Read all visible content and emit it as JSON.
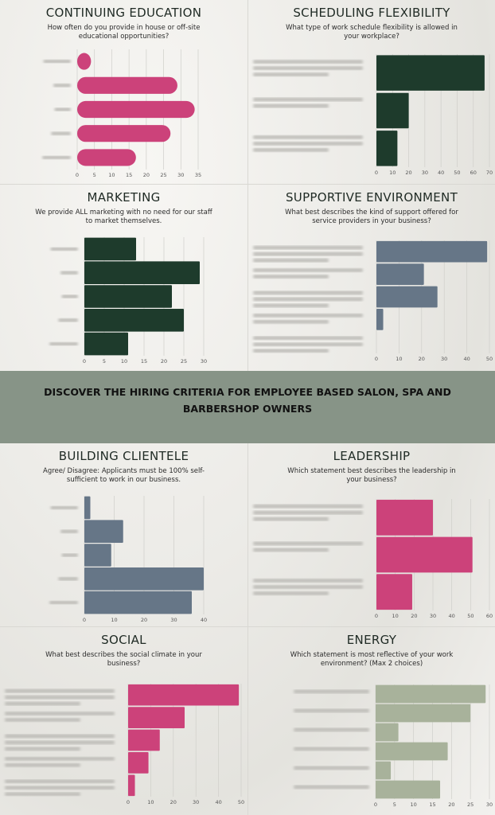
{
  "banner": {
    "text": "DISCOVER THE HIRING CRITERIA FOR EMPLOYEE BASED SALON, SPA AND BARBERSHOP OWNERS",
    "color": "#879487"
  },
  "chart_data": [
    {
      "id": "continuing-education",
      "type": "bar",
      "orientation": "horizontal",
      "title": "CONTINUING EDUCATION",
      "subtitle": "How often do you provide in house or off-site educational opportunities?",
      "values": [
        4,
        29,
        34,
        27,
        17
      ],
      "xlim": [
        0,
        35
      ],
      "ticks": [
        0,
        5,
        10,
        15,
        20,
        25,
        30,
        35
      ],
      "color": "#cc427a",
      "grid": true,
      "category_labels": "blurred",
      "bar_style": "rounded"
    },
    {
      "id": "scheduling-flexibility",
      "type": "bar",
      "orientation": "horizontal",
      "title": "SCHEDULING FLEXIBILITY",
      "subtitle": "What type of work schedule flexibility is allowed in your workplace?",
      "values": [
        67,
        20,
        13
      ],
      "xlim": [
        0,
        70
      ],
      "ticks": [
        0,
        10,
        20,
        30,
        40,
        50,
        60,
        70
      ],
      "color": "#1e3b2c",
      "grid": true,
      "category_labels": "blurred"
    },
    {
      "id": "marketing",
      "type": "bar",
      "orientation": "horizontal",
      "title": "MARKETING",
      "subtitle": "We provide ALL marketing with no need for our staff to market themselves.",
      "values": [
        13,
        29,
        22,
        25,
        11
      ],
      "xlim": [
        0,
        30
      ],
      "ticks": [
        0,
        5,
        10,
        15,
        20,
        25,
        30
      ],
      "color": "#1e3b2c",
      "grid": true,
      "category_labels": "blurred"
    },
    {
      "id": "supportive-environment",
      "type": "bar",
      "orientation": "horizontal",
      "title": "SUPPORTIVE ENVIRONMENT",
      "subtitle": "What best describes the kind of support offered for service providers in your business?",
      "values": [
        49,
        21,
        27,
        3,
        0
      ],
      "xlim": [
        0,
        50
      ],
      "ticks": [
        0,
        10,
        20,
        30,
        40,
        50
      ],
      "color": "#667687",
      "grid": true,
      "category_labels": "blurred"
    },
    {
      "id": "building-clientele",
      "type": "bar",
      "orientation": "horizontal",
      "title": "BUILDING CLIENTELE",
      "subtitle": "Agree/ Disagree: Applicants must be 100% self-sufficient to work in our business.",
      "values": [
        2,
        13,
        9,
        40,
        36
      ],
      "xlim": [
        0,
        40
      ],
      "ticks": [
        0,
        10,
        20,
        30,
        40
      ],
      "color": "#667687",
      "grid": true,
      "category_labels": "blurred"
    },
    {
      "id": "leadership",
      "type": "bar",
      "orientation": "horizontal",
      "title": "LEADERSHIP",
      "subtitle": "Which statement best describes the leadership in your business?",
      "values": [
        30,
        51,
        19
      ],
      "xlim": [
        0,
        60
      ],
      "ticks": [
        0,
        10,
        20,
        30,
        40,
        50,
        60
      ],
      "color": "#cc427a",
      "grid": true,
      "category_labels": "blurred"
    },
    {
      "id": "social",
      "type": "bar",
      "orientation": "horizontal",
      "title": "SOCIAL",
      "subtitle": "What best describes the social climate in your business?",
      "values": [
        49,
        25,
        14,
        9,
        3
      ],
      "xlim": [
        0,
        50
      ],
      "ticks": [
        0,
        10,
        20,
        30,
        40,
        50
      ],
      "color": "#cc427a",
      "grid": true,
      "category_labels": "blurred"
    },
    {
      "id": "energy",
      "type": "bar",
      "orientation": "horizontal",
      "title": "ENERGY",
      "subtitle": "Which statement is most reflective of your work environment? (Max 2 choices)",
      "values": [
        29,
        25,
        6,
        19,
        4,
        17
      ],
      "xlim": [
        0,
        30
      ],
      "ticks": [
        0,
        5,
        10,
        15,
        20,
        25,
        30
      ],
      "color": "#a8b29b",
      "grid": true,
      "category_labels": "blurred"
    }
  ]
}
